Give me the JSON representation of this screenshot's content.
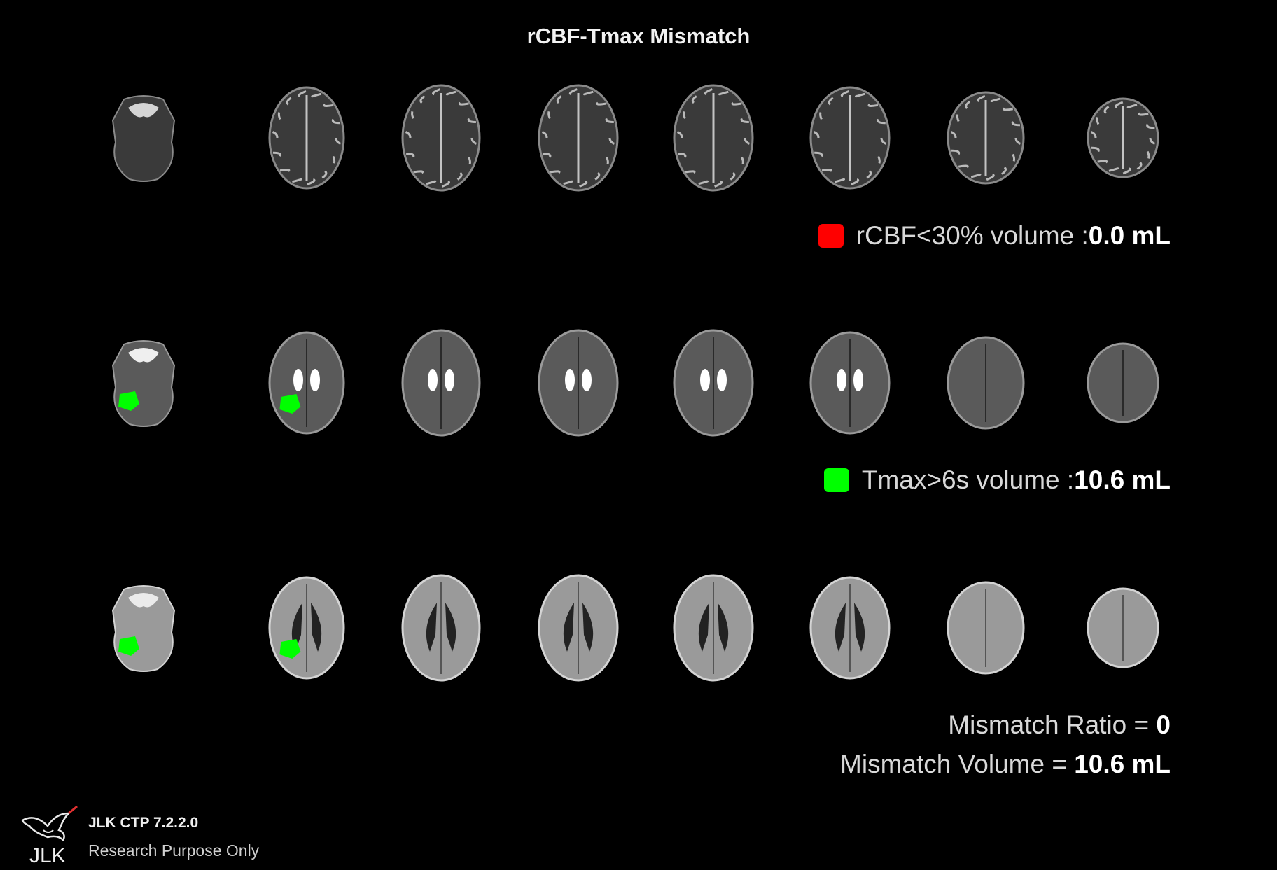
{
  "title": "rCBF-Tmax Mismatch",
  "rows": [
    {
      "name": "rcbf-row",
      "slices": 8,
      "lesion_color": "#ff0000",
      "lesion_slices": []
    },
    {
      "name": "tmax-row",
      "slices": 8,
      "lesion_color": "#00ff00",
      "lesion_slices": [
        0,
        1
      ]
    },
    {
      "name": "ncct-row",
      "slices": 8,
      "lesion_color": "#00ff00",
      "lesion_slices": [
        0,
        1
      ]
    }
  ],
  "legend_rcbf": {
    "label": "rCBF<30% volume : ",
    "value": "0.0 mL",
    "color": "#ff0000"
  },
  "legend_tmax": {
    "label": "Tmax>6s volume : ",
    "value": "10.6 mL",
    "color": "#00ff00"
  },
  "mismatch_ratio": {
    "label": "Mismatch Ratio = ",
    "value": "0"
  },
  "mismatch_volume": {
    "label": "Mismatch Volume = ",
    "value": "10.6 mL"
  },
  "footer": {
    "logo_text": "JLK",
    "product": "JLK CTP 7.2.2.0",
    "note": "Research Purpose Only"
  }
}
